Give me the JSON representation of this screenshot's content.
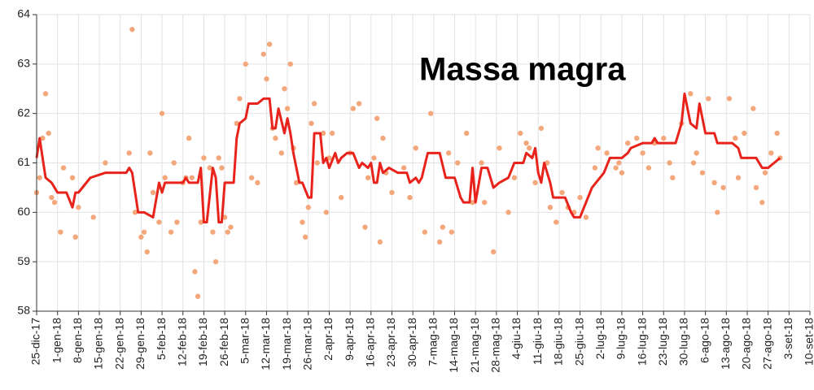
{
  "chart_data": {
    "type": "line",
    "title": "Massa magra",
    "xlim": [
      "2017-12-25",
      "2018-09-10"
    ],
    "xticks": [
      {
        "value": "2017-12-25",
        "label": "25-dic-17"
      },
      {
        "value": "2018-01-01",
        "label": "1-gen-18"
      },
      {
        "value": "2018-01-08",
        "label": "8-gen-18"
      },
      {
        "value": "2018-01-15",
        "label": "15-gen-18"
      },
      {
        "value": "2018-01-22",
        "label": "22-gen-18"
      },
      {
        "value": "2018-01-29",
        "label": "29-gen-18"
      },
      {
        "value": "2018-02-05",
        "label": "5-feb-18"
      },
      {
        "value": "2018-02-12",
        "label": "12-feb-18"
      },
      {
        "value": "2018-02-19",
        "label": "19-feb-18"
      },
      {
        "value": "2018-02-26",
        "label": "26-feb-18"
      },
      {
        "value": "2018-03-05",
        "label": "5-mar-18"
      },
      {
        "value": "2018-03-12",
        "label": "12-mar-18"
      },
      {
        "value": "2018-03-19",
        "label": "19-mar-18"
      },
      {
        "value": "2018-03-26",
        "label": "26-mar-18"
      },
      {
        "value": "2018-04-02",
        "label": "2-apr-18"
      },
      {
        "value": "2018-04-09",
        "label": "9-apr-18"
      },
      {
        "value": "2018-04-16",
        "label": "16-apr-18"
      },
      {
        "value": "2018-04-23",
        "label": "23-apr-18"
      },
      {
        "value": "2018-04-30",
        "label": "30-apr-18"
      },
      {
        "value": "2018-05-07",
        "label": "7-mag-18"
      },
      {
        "value": "2018-05-14",
        "label": "14-mag-18"
      },
      {
        "value": "2018-05-21",
        "label": "21-mag-18"
      },
      {
        "value": "2018-05-28",
        "label": "28-mag-18"
      },
      {
        "value": "2018-06-04",
        "label": "4-giu-18"
      },
      {
        "value": "2018-06-11",
        "label": "11-giu-18"
      },
      {
        "value": "2018-06-18",
        "label": "18-giu-18"
      },
      {
        "value": "2018-06-25",
        "label": "25-giu-18"
      },
      {
        "value": "2018-07-02",
        "label": "2-lug-18"
      },
      {
        "value": "2018-07-09",
        "label": "9-lug-18"
      },
      {
        "value": "2018-07-16",
        "label": "16-lug-18"
      },
      {
        "value": "2018-07-23",
        "label": "23-lug-18"
      },
      {
        "value": "2018-07-30",
        "label": "30-lug-18"
      },
      {
        "value": "2018-08-06",
        "label": "6-ago-18"
      },
      {
        "value": "2018-08-13",
        "label": "13-ago-18"
      },
      {
        "value": "2018-08-20",
        "label": "20-ago-18"
      },
      {
        "value": "2018-08-27",
        "label": "27-ago-18"
      },
      {
        "value": "2018-09-03",
        "label": "3-set-18"
      },
      {
        "value": "2018-09-10",
        "label": "10-set-18"
      }
    ],
    "ylim": [
      58,
      64
    ],
    "yticks": [
      58,
      59,
      60,
      61,
      62,
      63,
      64
    ],
    "grid": true,
    "series": [
      {
        "type": "scatter",
        "color": "#f5a77c",
        "x": [
          "2017-12-25",
          "2017-12-26",
          "2017-12-27",
          "2017-12-28",
          "2017-12-29",
          "2017-12-30",
          "2017-12-31",
          "2018-01-02",
          "2018-01-03",
          "2018-01-06",
          "2018-01-07",
          "2018-01-08",
          "2018-01-13",
          "2018-01-17",
          "2018-01-25",
          "2018-01-26",
          "2018-01-27",
          "2018-01-29",
          "2018-01-30",
          "2018-01-31",
          "2018-02-01",
          "2018-02-02",
          "2018-02-04",
          "2018-02-05",
          "2018-02-06",
          "2018-02-08",
          "2018-02-09",
          "2018-02-10",
          "2018-02-12",
          "2018-02-13",
          "2018-02-14",
          "2018-02-15",
          "2018-02-16",
          "2018-02-17",
          "2018-02-18",
          "2018-02-19",
          "2018-02-21",
          "2018-02-22",
          "2018-02-23",
          "2018-02-24",
          "2018-02-25",
          "2018-02-26",
          "2018-02-27",
          "2018-02-28",
          "2018-03-02",
          "2018-03-03",
          "2018-03-05",
          "2018-03-07",
          "2018-03-09",
          "2018-03-11",
          "2018-03-12",
          "2018-03-13",
          "2018-03-14",
          "2018-03-15",
          "2018-03-17",
          "2018-03-18",
          "2018-03-19",
          "2018-03-20",
          "2018-03-21",
          "2018-03-22",
          "2018-03-24",
          "2018-03-25",
          "2018-03-26",
          "2018-03-27",
          "2018-03-28",
          "2018-03-29",
          "2018-03-31",
          "2018-04-01",
          "2018-04-02",
          "2018-04-03",
          "2018-04-06",
          "2018-04-09",
          "2018-04-10",
          "2018-04-12",
          "2018-04-14",
          "2018-04-15",
          "2018-04-17",
          "2018-04-18",
          "2018-04-19",
          "2018-04-20",
          "2018-04-21",
          "2018-04-23",
          "2018-04-27",
          "2018-04-29",
          "2018-05-01",
          "2018-05-04",
          "2018-05-06",
          "2018-05-09",
          "2018-05-10",
          "2018-05-12",
          "2018-05-13",
          "2018-05-15",
          "2018-05-18",
          "2018-05-20",
          "2018-05-23",
          "2018-05-24",
          "2018-05-27",
          "2018-05-29",
          "2018-06-01",
          "2018-06-03",
          "2018-06-05",
          "2018-06-07",
          "2018-06-08",
          "2018-06-10",
          "2018-06-12",
          "2018-06-14",
          "2018-06-15",
          "2018-06-17",
          "2018-06-19",
          "2018-06-21",
          "2018-06-23",
          "2018-06-25",
          "2018-06-27",
          "2018-06-30",
          "2018-07-01",
          "2018-07-04",
          "2018-07-07",
          "2018-07-08",
          "2018-07-09",
          "2018-07-11",
          "2018-07-14",
          "2018-07-16",
          "2018-07-18",
          "2018-07-20",
          "2018-07-23",
          "2018-07-25",
          "2018-07-26",
          "2018-07-29",
          "2018-08-01",
          "2018-08-02",
          "2018-08-03",
          "2018-08-05",
          "2018-08-07",
          "2018-08-09",
          "2018-08-10",
          "2018-08-12",
          "2018-08-14",
          "2018-08-16",
          "2018-08-17",
          "2018-08-19",
          "2018-08-22",
          "2018-08-23",
          "2018-08-25",
          "2018-08-26",
          "2018-08-28",
          "2018-08-30",
          "2018-08-31"
        ],
        "values": [
          60.4,
          60.7,
          61.5,
          62.4,
          61.6,
          60.3,
          60.2,
          59.6,
          60.9,
          60.7,
          59.5,
          60.1,
          59.9,
          61.0,
          61.2,
          63.7,
          60.0,
          59.5,
          59.6,
          59.2,
          61.2,
          60.4,
          59.8,
          62.0,
          60.7,
          59.6,
          61.0,
          59.8,
          60.6,
          60.7,
          61.5,
          60.7,
          58.8,
          58.3,
          59.8,
          61.1,
          60.9,
          59.6,
          59.0,
          61.1,
          60.9,
          59.9,
          59.6,
          59.7,
          61.8,
          62.3,
          63.0,
          60.7,
          60.6,
          63.2,
          62.7,
          63.4,
          61.7,
          61.5,
          61.2,
          62.5,
          62.1,
          63.0,
          61.3,
          60.6,
          59.8,
          59.5,
          60.1,
          61.8,
          62.2,
          61.0,
          61.6,
          60.0,
          61.1,
          61.6,
          60.3,
          61.2,
          62.1,
          62.2,
          59.7,
          60.7,
          61.1,
          61.9,
          59.4,
          61.5,
          60.8,
          60.4,
          60.9,
          60.3,
          61.3,
          59.6,
          62.0,
          59.4,
          59.7,
          61.2,
          59.6,
          61.0,
          61.6,
          60.2,
          61.0,
          60.2,
          59.2,
          61.3,
          60.0,
          60.7,
          61.6,
          61.4,
          61.3,
          60.6,
          61.7,
          61.0,
          60.1,
          59.8,
          60.4,
          60.1,
          60.0,
          60.3,
          59.9,
          60.9,
          61.3,
          61.2,
          60.9,
          61.0,
          60.8,
          61.4,
          61.5,
          61.2,
          60.9,
          61.4,
          61.5,
          61.0,
          60.7,
          61.8,
          62.4,
          61.0,
          61.2,
          60.8,
          62.3,
          60.6,
          60.0,
          60.5,
          62.3,
          61.5,
          60.7,
          61.6,
          62.1,
          60.5,
          60.2,
          60.8,
          61.2,
          61.6,
          61.1
        ]
      },
      {
        "type": "line",
        "color": "#e8231c",
        "x": [
          "2017-12-25",
          "2017-12-26",
          "2017-12-28",
          "2017-12-30",
          "2018-01-01",
          "2018-01-04",
          "2018-01-06",
          "2018-01-07",
          "2018-01-08",
          "2018-01-12",
          "2018-01-17",
          "2018-01-24",
          "2018-01-25",
          "2018-01-26",
          "2018-01-28",
          "2018-01-30",
          "2018-02-02",
          "2018-02-04",
          "2018-02-05",
          "2018-02-06",
          "2018-02-12",
          "2018-02-13",
          "2018-02-14",
          "2018-02-17",
          "2018-02-18",
          "2018-02-19",
          "2018-02-20",
          "2018-02-22",
          "2018-02-23",
          "2018-02-24",
          "2018-02-25",
          "2018-02-26",
          "2018-03-01",
          "2018-03-02",
          "2018-03-03",
          "2018-03-05",
          "2018-03-06",
          "2018-03-09",
          "2018-03-11",
          "2018-03-13",
          "2018-03-14",
          "2018-03-15",
          "2018-03-16",
          "2018-03-18",
          "2018-03-19",
          "2018-03-20",
          "2018-03-21",
          "2018-03-23",
          "2018-03-24",
          "2018-03-26",
          "2018-03-27",
          "2018-03-28",
          "2018-03-30",
          "2018-03-31",
          "2018-04-01",
          "2018-04-02",
          "2018-04-04",
          "2018-04-05",
          "2018-04-06",
          "2018-04-08",
          "2018-04-10",
          "2018-04-12",
          "2018-04-13",
          "2018-04-15",
          "2018-04-16",
          "2018-04-17",
          "2018-04-18",
          "2018-04-19",
          "2018-04-20",
          "2018-04-22",
          "2018-04-25",
          "2018-04-28",
          "2018-04-29",
          "2018-05-01",
          "2018-05-02",
          "2018-05-03",
          "2018-05-05",
          "2018-05-09",
          "2018-05-11",
          "2018-05-14",
          "2018-05-16",
          "2018-05-17",
          "2018-05-19",
          "2018-05-20",
          "2018-05-21",
          "2018-05-23",
          "2018-05-25",
          "2018-05-27",
          "2018-05-29",
          "2018-06-01",
          "2018-06-03",
          "2018-06-06",
          "2018-06-07",
          "2018-06-09",
          "2018-06-10",
          "2018-06-11",
          "2018-06-12",
          "2018-06-13",
          "2018-06-15",
          "2018-06-16",
          "2018-06-20",
          "2018-06-22",
          "2018-06-23",
          "2018-06-25",
          "2018-06-27",
          "2018-06-29",
          "2018-07-03",
          "2018-07-05",
          "2018-07-09",
          "2018-07-11",
          "2018-07-12",
          "2018-07-16",
          "2018-07-19",
          "2018-07-20",
          "2018-07-21",
          "2018-07-27",
          "2018-07-29",
          "2018-07-30",
          "2018-08-01",
          "2018-08-03",
          "2018-08-04",
          "2018-08-06",
          "2018-08-09",
          "2018-08-10",
          "2018-08-15",
          "2018-08-17",
          "2018-08-18",
          "2018-08-23",
          "2018-08-25",
          "2018-08-27",
          "2018-08-29",
          "2018-08-31"
        ],
        "values": [
          61.1,
          61.5,
          60.7,
          60.6,
          60.4,
          60.4,
          60.1,
          60.4,
          60.4,
          60.7,
          60.8,
          60.8,
          60.9,
          60.8,
          60.0,
          60.0,
          59.9,
          60.6,
          60.4,
          60.6,
          60.6,
          60.7,
          60.6,
          60.6,
          60.9,
          59.8,
          59.8,
          60.9,
          60.7,
          59.8,
          59.8,
          60.6,
          60.6,
          61.5,
          61.8,
          61.9,
          62.2,
          62.2,
          62.3,
          62.3,
          61.7,
          61.7,
          62.1,
          61.6,
          61.9,
          61.6,
          61.2,
          60.6,
          60.6,
          60.3,
          60.3,
          61.6,
          61.6,
          61.0,
          61.1,
          60.9,
          61.2,
          61.0,
          61.1,
          61.2,
          61.2,
          60.9,
          61.0,
          60.9,
          61.0,
          60.6,
          60.6,
          61.0,
          60.8,
          60.9,
          60.8,
          60.8,
          60.6,
          60.7,
          60.6,
          60.7,
          61.2,
          61.2,
          60.7,
          60.7,
          60.3,
          60.2,
          60.2,
          60.9,
          60.2,
          60.9,
          60.9,
          60.5,
          60.6,
          60.7,
          61.0,
          61.0,
          61.2,
          61.1,
          61.3,
          60.8,
          60.6,
          61.0,
          60.6,
          60.3,
          60.3,
          60.0,
          59.9,
          59.9,
          60.2,
          60.5,
          60.8,
          61.1,
          61.1,
          61.2,
          61.3,
          61.4,
          61.4,
          61.5,
          61.4,
          61.4,
          61.8,
          62.4,
          61.8,
          61.7,
          62.2,
          61.6,
          61.6,
          61.4,
          61.4,
          61.3,
          61.1,
          61.1,
          60.9,
          60.9,
          61.0,
          61.1
        ]
      }
    ]
  }
}
